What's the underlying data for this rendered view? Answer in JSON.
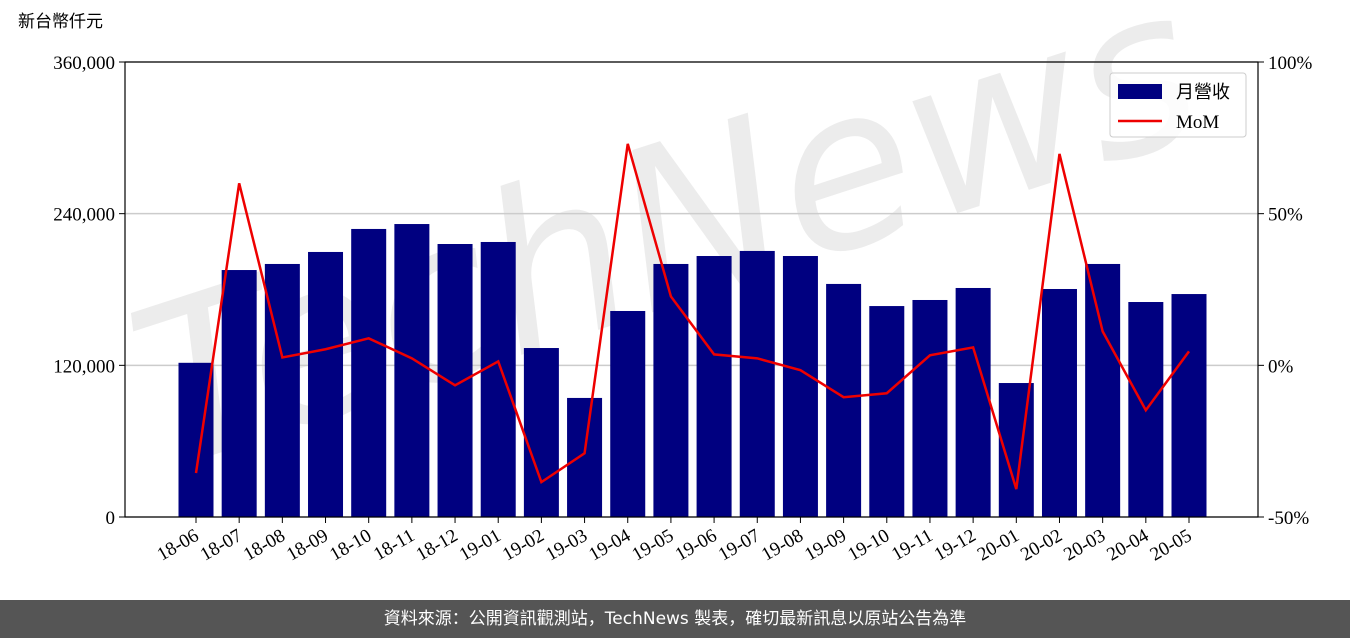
{
  "chart_data": {
    "type": "bar-line",
    "y_label": "新台幣仟元",
    "watermark": "TechNews",
    "categories": [
      "18-06",
      "18-07",
      "18-08",
      "18-09",
      "18-10",
      "18-11",
      "18-12",
      "19-01",
      "19-02",
      "19-03",
      "19-04",
      "19-05",
      "19-06",
      "19-07",
      "19-08",
      "19-09",
      "19-10",
      "19-11",
      "19-12",
      "20-01",
      "20-02",
      "20-03",
      "20-04",
      "20-05"
    ],
    "series": [
      {
        "name": "月營收",
        "type": "bar",
        "color": "#000080",
        "values": [
          122000,
          195400,
          200200,
          209700,
          227900,
          231800,
          216000,
          217600,
          133700,
          94200,
          163000,
          200200,
          206500,
          210500,
          206500,
          184400,
          166900,
          171700,
          181200,
          106000,
          180400,
          200200,
          170100,
          176400
        ]
      },
      {
        "name": "MoM",
        "type": "line",
        "axis": "y2",
        "color": "#ee0000",
        "values": [
          -35.5,
          60,
          2.6,
          5.3,
          8.9,
          2.3,
          -6.6,
          1.3,
          -38.5,
          -29,
          73,
          22.7,
          3.6,
          2.3,
          -1.6,
          -10.5,
          -9.2,
          3.3,
          5.9,
          -40.8,
          69.7,
          11.2,
          -14.8,
          4.6
        ]
      }
    ],
    "ylim": [
      0,
      360000
    ],
    "yticks": [
      {
        "value": 0,
        "label": "0"
      },
      {
        "value": 120000,
        "label": "120,000"
      },
      {
        "value": 240000,
        "label": "240,000"
      },
      {
        "value": 360000,
        "label": "360,000"
      }
    ],
    "y2lim": [
      -50,
      100
    ],
    "y2ticks": [
      {
        "value": -50,
        "label": "-50%"
      },
      {
        "value": 0,
        "label": "0%"
      },
      {
        "value": 50,
        "label": "50%"
      },
      {
        "value": 100,
        "label": "100%"
      }
    ],
    "grid": true,
    "legend": "upper right",
    "footer": "資料來源：公開資訊觀測站，TechNews 製表，確切最新訊息以原站公告為準"
  }
}
